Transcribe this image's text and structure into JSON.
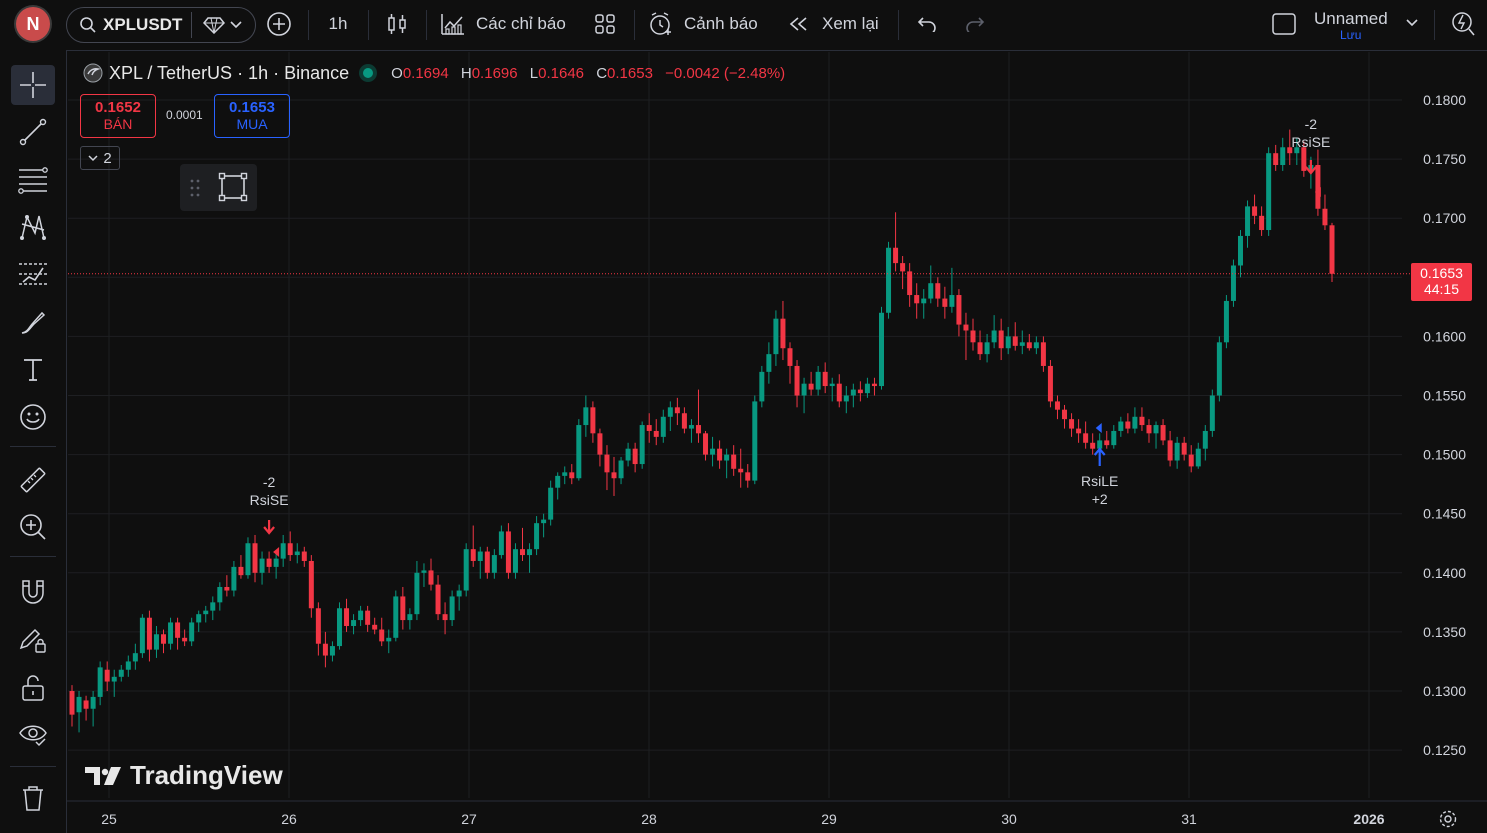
{
  "topbar": {
    "avatar": "N",
    "symbol": "XPLUSDT",
    "interval": "1h",
    "indicators": "Các chỉ báo",
    "alerts": "Cảnh báo",
    "replay": "Xem lại",
    "layout_name": "Unnamed",
    "save": "Lưu"
  },
  "legend": {
    "title": "XPL / TetherUS · 1h · Binance",
    "o_label": "O",
    "o": "0.1694",
    "h_label": "H",
    "h": "0.1696",
    "l_label": "L",
    "l": "0.1646",
    "c_label": "C",
    "c": "0.1653",
    "change": "−0.0042 (−2.48%)"
  },
  "trade": {
    "sell_price": "0.1652",
    "sell_label": "BÁN",
    "spread": "0.0001",
    "buy_price": "0.1653",
    "buy_label": "MUA",
    "collapse_count": "2"
  },
  "price_tag": {
    "price": "0.1653",
    "countdown": "44:15"
  },
  "watermark": "TradingView",
  "signals": [
    {
      "top": "-2",
      "bottom": "RsiSE",
      "dir": "down",
      "color": "#f23645"
    },
    {
      "top": "RsiLE",
      "bottom": "+2",
      "dir": "up",
      "color": "#2962ff"
    },
    {
      "top": "-2",
      "bottom": "RsiSE",
      "dir": "down",
      "color": "#f23645"
    }
  ],
  "chart_data": {
    "type": "candlestick",
    "ylim": [
      0.122,
      0.1825
    ],
    "y_ticks": [
      "0.1800",
      "0.1750",
      "0.1700",
      "0.1600",
      "0.1550",
      "0.1500",
      "0.1450",
      "0.1400",
      "0.1350",
      "0.1300",
      "0.1250"
    ],
    "x_ticks": [
      "25",
      "26",
      "27",
      "28",
      "29",
      "30",
      "31",
      "2026"
    ],
    "current_price": 0.1653,
    "colors": {
      "up": "#089981",
      "down": "#f23645",
      "bg": "#0f0f0f",
      "grid": "#1e1f22"
    },
    "bars": [
      [
        0.13,
        0.1305,
        0.127,
        0.128
      ],
      [
        0.1282,
        0.13,
        0.1265,
        0.1295
      ],
      [
        0.1292,
        0.1296,
        0.1275,
        0.1285
      ],
      [
        0.1285,
        0.13,
        0.127,
        0.1295
      ],
      [
        0.1295,
        0.1325,
        0.1288,
        0.132
      ],
      [
        0.1318,
        0.1325,
        0.13,
        0.1308
      ],
      [
        0.1308,
        0.1318,
        0.1295,
        0.1312
      ],
      [
        0.1312,
        0.1322,
        0.1308,
        0.1318
      ],
      [
        0.1318,
        0.133,
        0.1312,
        0.1325
      ],
      [
        0.1325,
        0.134,
        0.1318,
        0.1332
      ],
      [
        0.1332,
        0.1365,
        0.1328,
        0.1362
      ],
      [
        0.1362,
        0.1368,
        0.1325,
        0.1335
      ],
      [
        0.1335,
        0.1355,
        0.1328,
        0.1348
      ],
      [
        0.1348,
        0.1352,
        0.1332,
        0.134
      ],
      [
        0.134,
        0.1362,
        0.1335,
        0.1358
      ],
      [
        0.1358,
        0.1362,
        0.1335,
        0.1345
      ],
      [
        0.1345,
        0.1352,
        0.1338,
        0.1342
      ],
      [
        0.1342,
        0.1362,
        0.1338,
        0.1358
      ],
      [
        0.1358,
        0.1368,
        0.135,
        0.1365
      ],
      [
        0.1365,
        0.1372,
        0.1358,
        0.1368
      ],
      [
        0.1368,
        0.138,
        0.136,
        0.1375
      ],
      [
        0.1375,
        0.1392,
        0.1368,
        0.1388
      ],
      [
        0.1388,
        0.1398,
        0.138,
        0.1385
      ],
      [
        0.1385,
        0.141,
        0.138,
        0.1405
      ],
      [
        0.1405,
        0.1415,
        0.1395,
        0.1398
      ],
      [
        0.1398,
        0.143,
        0.1395,
        0.1425
      ],
      [
        0.1425,
        0.1432,
        0.1392,
        0.14
      ],
      [
        0.14,
        0.1418,
        0.139,
        0.1412
      ],
      [
        0.1412,
        0.1418,
        0.14,
        0.1405
      ],
      [
        0.1405,
        0.1418,
        0.1395,
        0.1412
      ],
      [
        0.1412,
        0.1432,
        0.1405,
        0.1425
      ],
      [
        0.1425,
        0.1435,
        0.141,
        0.1415
      ],
      [
        0.1415,
        0.1425,
        0.1408,
        0.1418
      ],
      [
        0.1418,
        0.1422,
        0.1405,
        0.141
      ],
      [
        0.141,
        0.1415,
        0.1362,
        0.137
      ],
      [
        0.137,
        0.1375,
        0.133,
        0.134
      ],
      [
        0.134,
        0.135,
        0.132,
        0.133
      ],
      [
        0.133,
        0.1342,
        0.1325,
        0.1338
      ],
      [
        0.1338,
        0.1375,
        0.1335,
        0.137
      ],
      [
        0.137,
        0.1378,
        0.135,
        0.1355
      ],
      [
        0.1355,
        0.1365,
        0.1348,
        0.136
      ],
      [
        0.136,
        0.1372,
        0.1355,
        0.1368
      ],
      [
        0.1368,
        0.1372,
        0.135,
        0.1356
      ],
      [
        0.1356,
        0.1362,
        0.1348,
        0.1352
      ],
      [
        0.1352,
        0.1362,
        0.1338,
        0.1342
      ],
      [
        0.1342,
        0.1352,
        0.1332,
        0.1345
      ],
      [
        0.1345,
        0.1385,
        0.1342,
        0.138
      ],
      [
        0.138,
        0.1388,
        0.1352,
        0.136
      ],
      [
        0.136,
        0.137,
        0.1352,
        0.1365
      ],
      [
        0.1365,
        0.141,
        0.136,
        0.14
      ],
      [
        0.14,
        0.1408,
        0.1388,
        0.1402
      ],
      [
        0.1402,
        0.1412,
        0.1385,
        0.139
      ],
      [
        0.139,
        0.1398,
        0.136,
        0.1365
      ],
      [
        0.1365,
        0.1375,
        0.1348,
        0.136
      ],
      [
        0.136,
        0.1385,
        0.1355,
        0.138
      ],
      [
        0.138,
        0.139,
        0.1368,
        0.1385
      ],
      [
        0.1385,
        0.1425,
        0.138,
        0.142
      ],
      [
        0.142,
        0.144,
        0.1405,
        0.141
      ],
      [
        0.141,
        0.1422,
        0.1395,
        0.1418
      ],
      [
        0.1418,
        0.1422,
        0.1395,
        0.14
      ],
      [
        0.14,
        0.142,
        0.1395,
        0.1415
      ],
      [
        0.1415,
        0.144,
        0.1412,
        0.1435
      ],
      [
        0.1435,
        0.1442,
        0.1395,
        0.14
      ],
      [
        0.14,
        0.1425,
        0.1395,
        0.142
      ],
      [
        0.142,
        0.1438,
        0.141,
        0.1415
      ],
      [
        0.1415,
        0.1425,
        0.14,
        0.142
      ],
      [
        0.142,
        0.1448,
        0.1415,
        0.1442
      ],
      [
        0.1442,
        0.145,
        0.143,
        0.1445
      ],
      [
        0.1445,
        0.1478,
        0.144,
        0.1472
      ],
      [
        0.1472,
        0.1485,
        0.1462,
        0.1482
      ],
      [
        0.1482,
        0.149,
        0.1475,
        0.1485
      ],
      [
        0.1485,
        0.1492,
        0.1475,
        0.148
      ],
      [
        0.148,
        0.153,
        0.1478,
        0.1525
      ],
      [
        0.1525,
        0.155,
        0.1515,
        0.154
      ],
      [
        0.154,
        0.1545,
        0.151,
        0.1518
      ],
      [
        0.1518,
        0.1522,
        0.149,
        0.15
      ],
      [
        0.15,
        0.1508,
        0.147,
        0.1485
      ],
      [
        0.1485,
        0.1498,
        0.1465,
        0.148
      ],
      [
        0.148,
        0.1498,
        0.1475,
        0.1495
      ],
      [
        0.1495,
        0.151,
        0.149,
        0.1505
      ],
      [
        0.1505,
        0.151,
        0.1485,
        0.1492
      ],
      [
        0.1492,
        0.1528,
        0.1488,
        0.1525
      ],
      [
        0.1525,
        0.1535,
        0.151,
        0.152
      ],
      [
        0.152,
        0.153,
        0.1508,
        0.1515
      ],
      [
        0.1515,
        0.1538,
        0.151,
        0.1532
      ],
      [
        0.1532,
        0.1545,
        0.152,
        0.154
      ],
      [
        0.154,
        0.1548,
        0.1525,
        0.1535
      ],
      [
        0.1535,
        0.154,
        0.1518,
        0.1522
      ],
      [
        0.1522,
        0.153,
        0.151,
        0.1525
      ],
      [
        0.1525,
        0.1555,
        0.151,
        0.1518
      ],
      [
        0.1518,
        0.152,
        0.1495,
        0.15
      ],
      [
        0.15,
        0.1515,
        0.149,
        0.1505
      ],
      [
        0.1505,
        0.1512,
        0.1488,
        0.1495
      ],
      [
        0.1495,
        0.1505,
        0.148,
        0.15
      ],
      [
        0.15,
        0.1508,
        0.1482,
        0.1488
      ],
      [
        0.1488,
        0.1505,
        0.1472,
        0.1485
      ],
      [
        0.1485,
        0.1492,
        0.1472,
        0.1478
      ],
      [
        0.1478,
        0.155,
        0.1475,
        0.1545
      ],
      [
        0.1545,
        0.1575,
        0.154,
        0.157
      ],
      [
        0.157,
        0.1595,
        0.156,
        0.1585
      ],
      [
        0.1585,
        0.1622,
        0.1575,
        0.1615
      ],
      [
        0.1615,
        0.163,
        0.158,
        0.159
      ],
      [
        0.159,
        0.1595,
        0.156,
        0.1575
      ],
      [
        0.1575,
        0.158,
        0.154,
        0.155
      ],
      [
        0.155,
        0.1565,
        0.1535,
        0.156
      ],
      [
        0.156,
        0.157,
        0.155,
        0.1555
      ],
      [
        0.1555,
        0.1575,
        0.155,
        0.157
      ],
      [
        0.157,
        0.1578,
        0.1552,
        0.1558
      ],
      [
        0.1558,
        0.1565,
        0.1545,
        0.156
      ],
      [
        0.156,
        0.1568,
        0.154,
        0.1545
      ],
      [
        0.1545,
        0.1558,
        0.1535,
        0.155
      ],
      [
        0.155,
        0.156,
        0.154,
        0.1555
      ],
      [
        0.1555,
        0.1562,
        0.1545,
        0.1552
      ],
      [
        0.1552,
        0.1565,
        0.1548,
        0.156
      ],
      [
        0.156,
        0.1565,
        0.155,
        0.1558
      ],
      [
        0.1558,
        0.1625,
        0.1555,
        0.162
      ],
      [
        0.162,
        0.168,
        0.1615,
        0.1675
      ],
      [
        0.1675,
        0.1705,
        0.1655,
        0.1662
      ],
      [
        0.1662,
        0.1668,
        0.164,
        0.1655
      ],
      [
        0.1655,
        0.1662,
        0.1625,
        0.1635
      ],
      [
        0.1635,
        0.1645,
        0.1615,
        0.1628
      ],
      [
        0.1628,
        0.164,
        0.1615,
        0.1632
      ],
      [
        0.1632,
        0.166,
        0.1628,
        0.1645
      ],
      [
        0.1645,
        0.165,
        0.1625,
        0.1632
      ],
      [
        0.1632,
        0.1642,
        0.1615,
        0.1625
      ],
      [
        0.1625,
        0.1658,
        0.162,
        0.1635
      ],
      [
        0.1635,
        0.164,
        0.16,
        0.161
      ],
      [
        0.161,
        0.162,
        0.158,
        0.1605
      ],
      [
        0.1605,
        0.1615,
        0.1588,
        0.1595
      ],
      [
        0.1595,
        0.1605,
        0.158,
        0.1585
      ],
      [
        0.1585,
        0.1602,
        0.1578,
        0.1595
      ],
      [
        0.1595,
        0.1618,
        0.159,
        0.1605
      ],
      [
        0.1605,
        0.1615,
        0.158,
        0.159
      ],
      [
        0.159,
        0.1608,
        0.1585,
        0.16
      ],
      [
        0.16,
        0.1612,
        0.1588,
        0.1592
      ],
      [
        0.1592,
        0.1605,
        0.1585,
        0.1595
      ],
      [
        0.1595,
        0.1602,
        0.1588,
        0.159
      ],
      [
        0.159,
        0.16,
        0.1585,
        0.1595
      ],
      [
        0.1595,
        0.16,
        0.157,
        0.1575
      ],
      [
        0.1575,
        0.158,
        0.154,
        0.1545
      ],
      [
        0.1545,
        0.155,
        0.153,
        0.1538
      ],
      [
        0.1538,
        0.1542,
        0.1522,
        0.153
      ],
      [
        0.153,
        0.1535,
        0.1515,
        0.1522
      ],
      [
        0.1522,
        0.153,
        0.151,
        0.1518
      ],
      [
        0.1518,
        0.1528,
        0.1505,
        0.151
      ],
      [
        0.151,
        0.1518,
        0.15,
        0.1505
      ],
      [
        0.1505,
        0.1518,
        0.1498,
        0.1512
      ],
      [
        0.1512,
        0.152,
        0.1505,
        0.1508
      ],
      [
        0.1508,
        0.1525,
        0.1505,
        0.152
      ],
      [
        0.152,
        0.1532,
        0.1515,
        0.1528
      ],
      [
        0.1528,
        0.1535,
        0.1518,
        0.1522
      ],
      [
        0.1522,
        0.154,
        0.1518,
        0.1532
      ],
      [
        0.1532,
        0.154,
        0.152,
        0.1525
      ],
      [
        0.1525,
        0.153,
        0.151,
        0.1518
      ],
      [
        0.1518,
        0.1528,
        0.1505,
        0.1525
      ],
      [
        0.1525,
        0.153,
        0.1508,
        0.1512
      ],
      [
        0.1512,
        0.152,
        0.149,
        0.1495
      ],
      [
        0.1495,
        0.1515,
        0.1488,
        0.151
      ],
      [
        0.151,
        0.1515,
        0.1495,
        0.15
      ],
      [
        0.15,
        0.1508,
        0.1485,
        0.149
      ],
      [
        0.149,
        0.151,
        0.1488,
        0.1505
      ],
      [
        0.1505,
        0.1525,
        0.1495,
        0.152
      ],
      [
        0.152,
        0.1555,
        0.1515,
        0.155
      ],
      [
        0.155,
        0.16,
        0.1545,
        0.1595
      ],
      [
        0.1595,
        0.1635,
        0.159,
        0.163
      ],
      [
        0.163,
        0.1665,
        0.1625,
        0.166
      ],
      [
        0.166,
        0.169,
        0.165,
        0.1685
      ],
      [
        0.1685,
        0.1715,
        0.1675,
        0.171
      ],
      [
        0.171,
        0.172,
        0.1695,
        0.1702
      ],
      [
        0.1702,
        0.171,
        0.1685,
        0.169
      ],
      [
        0.169,
        0.176,
        0.1685,
        0.1755
      ],
      [
        0.1755,
        0.1762,
        0.174,
        0.1745
      ],
      [
        0.1745,
        0.1768,
        0.174,
        0.176
      ],
      [
        0.176,
        0.1775,
        0.1745,
        0.1755
      ],
      [
        0.1755,
        0.1768,
        0.1745,
        0.176
      ],
      [
        0.176,
        0.1765,
        0.1735,
        0.174
      ],
      [
        0.174,
        0.1752,
        0.1725,
        0.1745
      ],
      [
        0.1745,
        0.1758,
        0.1702,
        0.1708
      ],
      [
        0.1708,
        0.172,
        0.169,
        0.1694
      ],
      [
        0.1694,
        0.1696,
        0.1646,
        0.1653
      ]
    ]
  }
}
